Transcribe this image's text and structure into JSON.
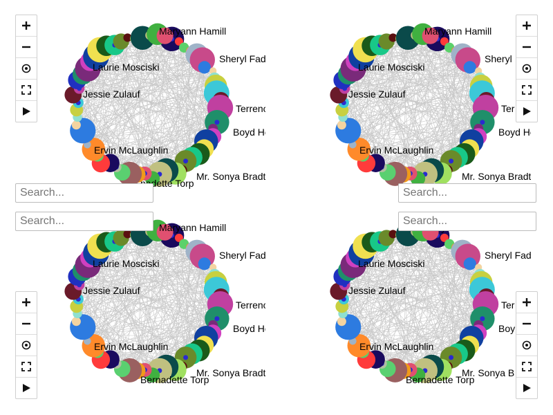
{
  "search": {
    "placeholder": "Search..."
  },
  "toolbar": {
    "buttons": [
      {
        "id": "zoom-in",
        "icon": "plus-icon"
      },
      {
        "id": "zoom-out",
        "icon": "minus-icon"
      },
      {
        "id": "center",
        "icon": "target-icon"
      },
      {
        "id": "fullscreen",
        "icon": "fullscreen-icon"
      },
      {
        "id": "play",
        "icon": "play-icon"
      }
    ]
  },
  "graph": {
    "edge_color": "#c8c8c8",
    "labels": [
      "Maryann Hamill",
      "Sheryl Fadel",
      "Terrence",
      "Boyd Heat",
      "Mr. Sonya Bradtke",
      "Bernadette Torp",
      "Ervin McLaughlin",
      "Jessie Zulauf",
      "Laurie Mosciski"
    ],
    "panel_labels": [
      [
        "Maryann Hamill",
        "Sheryl Fadel",
        "Terrence",
        "Boyd Heat",
        "Mr. Sonya Bradtke",
        "nadette Torp",
        "Ervin McLaughlin",
        "Jessie Zulauf",
        "Laurie Mosciski"
      ],
      [
        "Maryann Hamill",
        "Sheryl",
        "Ter",
        "Boyd Heat",
        "Mr. Sonya Bradtke",
        "",
        "Ervin McLaughlin",
        "Jessie Zulauf",
        "Laurie Mosciski"
      ],
      [
        "Maryann Hamill",
        "Sheryl Fadel",
        "Terrence",
        "Boyd Heat",
        "Mr. Sonya Bradtke",
        "Bernadette Torp",
        "Ervin McLaughlin",
        "Jessie Zulauf",
        "Laurie Mosciski"
      ],
      [
        "Maryann Hamill",
        "Sheryl Fadel",
        "Ter",
        "Boy",
        "Mr. Sonya B",
        "Bernadette Torp",
        "Ervin McLaughlin",
        "Jessie Zulauf",
        "Laurie Mosciski"
      ]
    ],
    "node_colors": [
      "#1a0a5e",
      "#ff3b3b",
      "#5bd16a",
      "#ff8a2a",
      "#9fb3c8",
      "#c84a8a",
      "#2d7be0",
      "#f4d4a0",
      "#8fe0d0",
      "#c8d040",
      "#3cc8d8",
      "#6a1a2a",
      "#c040a0",
      "#2030c0",
      "#1f8f6a",
      "#7a2a7a",
      "#d040c0",
      "#1040a0",
      "#f0e050",
      "#1a5a1a",
      "#18c888",
      "#6a8a2a",
      "#5a1010",
      "#a0e060",
      "#0a4a4a",
      "#c0c080",
      "#40b040",
      "#e05070",
      "#f09a1a",
      "#9a6060",
      "#5ad070",
      "#b0c0a0"
    ]
  }
}
